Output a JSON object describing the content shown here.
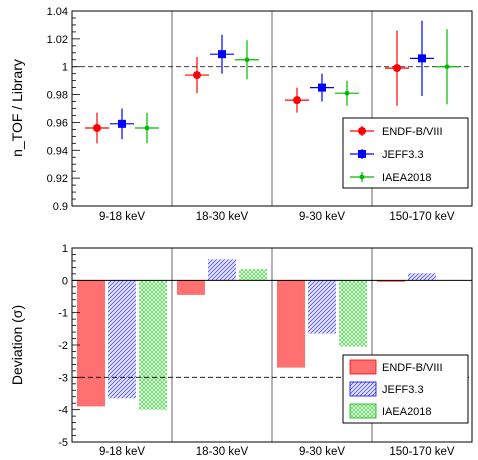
{
  "chart_data": [
    {
      "type": "scatter",
      "ylabel": "n_TOF / Library",
      "ylim": [
        0.9,
        1.04
      ],
      "yticks": [
        "0.9",
        "0.92",
        "0.94",
        "0.96",
        "0.98",
        "1",
        "1.02",
        "1.04"
      ],
      "reference_line": 1.0,
      "categories": [
        "9-18 keV",
        "18-30 keV",
        "9-30 keV",
        "150-170 keV"
      ],
      "series": [
        {
          "name": "ENDF-B/VIII",
          "color": "#ff0000",
          "marker": "circle",
          "values": [
            0.956,
            0.994,
            0.976,
            0.999
          ],
          "errors": [
            0.011,
            0.013,
            0.009,
            0.027
          ]
        },
        {
          "name": "JEFF3.3",
          "color": "#0000ff",
          "marker": "square",
          "values": [
            0.959,
            1.009,
            0.985,
            1.006
          ],
          "errors": [
            0.011,
            0.014,
            0.01,
            0.027
          ]
        },
        {
          "name": "IAEA2018",
          "color": "#00bb00",
          "marker": "diamond",
          "values": [
            0.956,
            1.005,
            0.981,
            1.0
          ],
          "errors": [
            0.011,
            0.014,
            0.009,
            0.027
          ]
        }
      ],
      "legend": "bottom-right"
    },
    {
      "type": "bar",
      "ylabel": "Deviation (σ)",
      "ylim": [
        -5,
        1
      ],
      "yticks": [
        "-5",
        "-4",
        "-3",
        "-2",
        "-1",
        "0",
        "1"
      ],
      "reference_line": -3,
      "categories": [
        "9-18 keV",
        "18-30 keV",
        "9-30 keV",
        "150-170 keV"
      ],
      "series": [
        {
          "name": "ENDF-B/VIII",
          "color": "#ff0000",
          "fill": "solid",
          "values": [
            -3.9,
            -0.45,
            -2.7,
            -0.05
          ]
        },
        {
          "name": "JEFF3.3",
          "color": "#0000ff",
          "fill": "hatched",
          "values": [
            -3.65,
            0.65,
            -1.65,
            0.22
          ]
        },
        {
          "name": "IAEA2018",
          "color": "#00bb00",
          "fill": "hatched",
          "values": [
            -4.0,
            0.35,
            -2.05,
            0.0
          ]
        }
      ],
      "legend": "bottom-right"
    }
  ]
}
